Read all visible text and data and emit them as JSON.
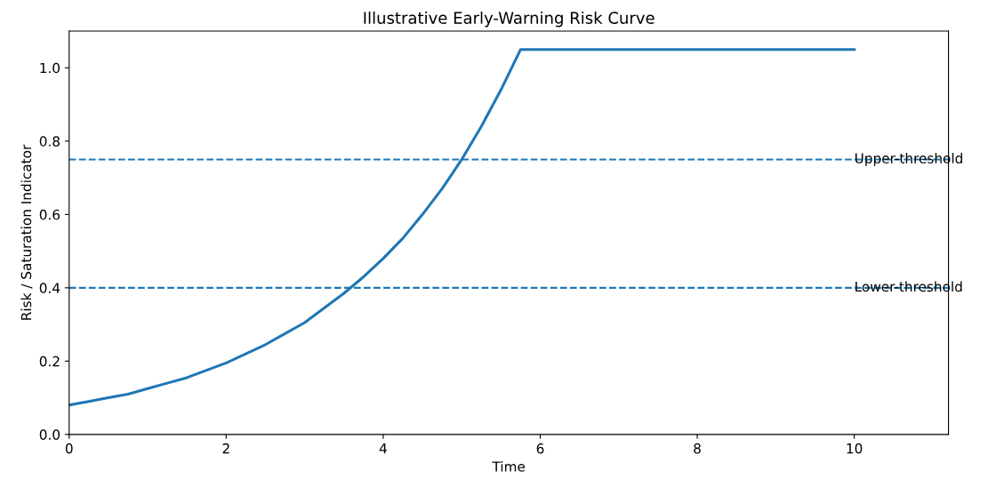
{
  "chart_data": {
    "type": "line",
    "title": "Illustrative Early-Warning Risk Curve",
    "xlabel": "Time",
    "ylabel": "Risk / Saturation Indicator",
    "x": [
      0,
      0.25,
      0.5,
      0.75,
      1,
      1.25,
      1.5,
      1.75,
      2,
      2.25,
      2.5,
      2.75,
      3,
      3.25,
      3.5,
      3.75,
      4,
      4.25,
      4.5,
      4.75,
      5,
      5.25,
      5.5,
      5.75,
      10
    ],
    "series": [
      {
        "color": "#1f77b4",
        "values": [
          0.08,
          0.09,
          0.1,
          0.11,
          0.125,
          0.14,
          0.155,
          0.175,
          0.195,
          0.22,
          0.245,
          0.275,
          0.305,
          0.345,
          0.385,
          0.43,
          0.48,
          0.535,
          0.6,
          0.67,
          0.75,
          0.84,
          0.94,
          1.05,
          1.05
        ]
      }
    ],
    "ref_lines": [
      {
        "axis": "y",
        "value": 0.75,
        "label": "Upper-threshold",
        "color": "#1f77b4",
        "line_style": "dashed"
      },
      {
        "axis": "y",
        "value": 0.4,
        "label": "Lower-threshold",
        "color": "#1f77b4",
        "line_style": "dashed"
      }
    ],
    "xlim": [
      0,
      11.2
    ],
    "ylim": [
      0,
      1.1
    ],
    "xticks": [
      0,
      2,
      4,
      6,
      8,
      10
    ],
    "yticks": [
      {
        "value": 0,
        "label": "0.0"
      },
      {
        "value": 0.2,
        "label": "0.2"
      },
      {
        "value": 0.4,
        "label": "0.4"
      },
      {
        "value": 0.6,
        "label": "0.6"
      },
      {
        "value": 0.8,
        "label": "0.8"
      },
      {
        "value": 1.0,
        "label": "1.0"
      }
    ],
    "grid": false,
    "legend": false,
    "marker": "none",
    "line_style": "solid"
  }
}
